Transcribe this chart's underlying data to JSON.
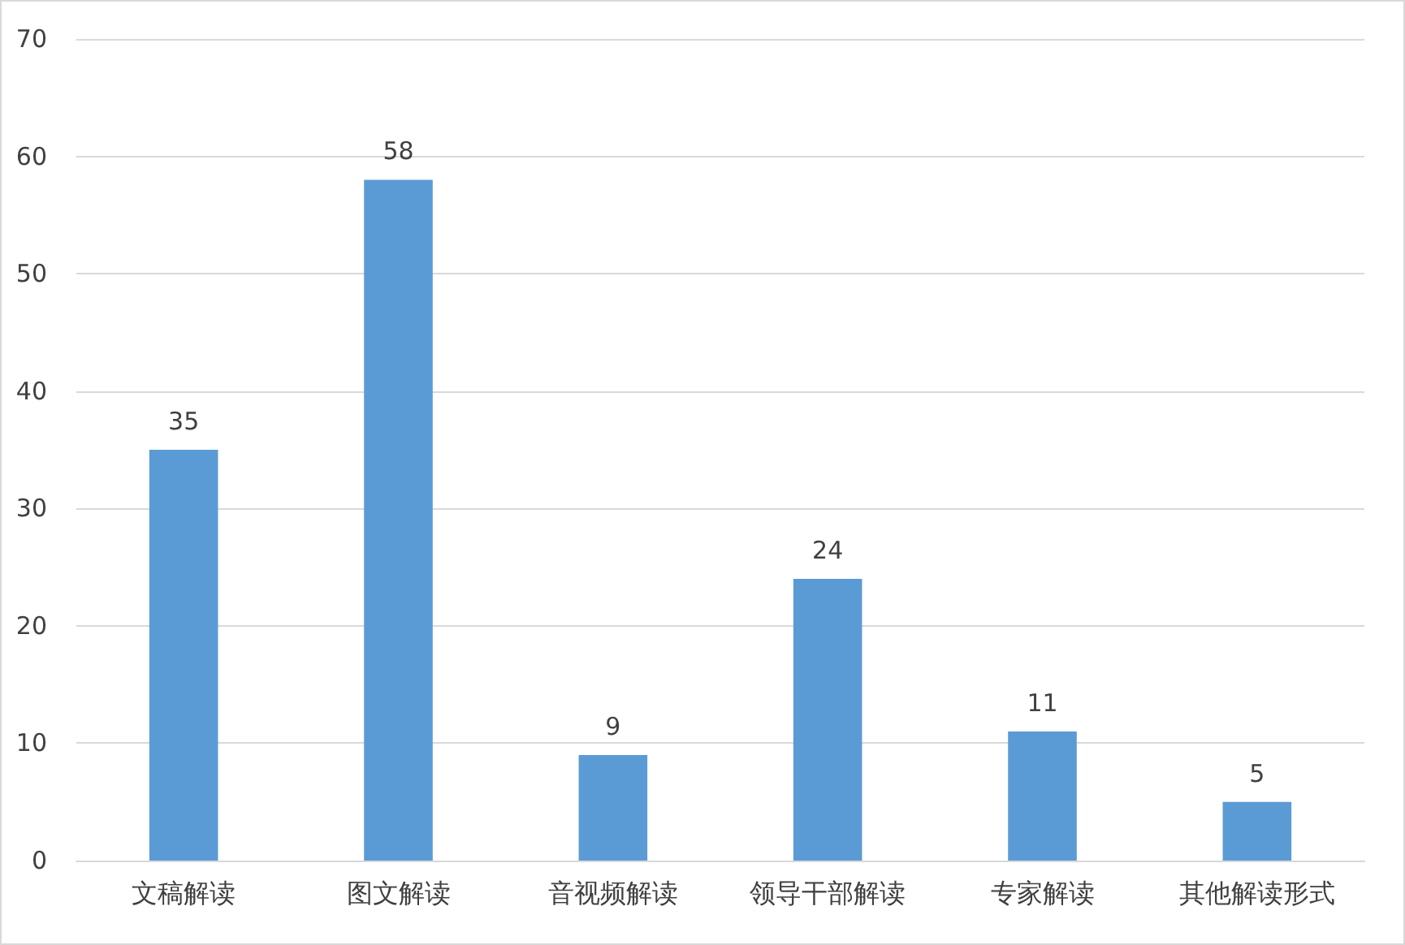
{
  "chart_data": {
    "type": "bar",
    "categories": [
      "文稿解读",
      "图文解读",
      "音视频解读",
      "领导干部解读",
      "专家解读",
      "其他解读形式"
    ],
    "values": [
      35,
      58,
      9,
      24,
      11,
      5
    ],
    "color": "#5b9bd5",
    "ylim": [
      0,
      70
    ],
    "yticks": [
      0,
      10,
      20,
      30,
      40,
      50,
      60,
      70
    ],
    "grid": "y",
    "data_labels": true
  }
}
